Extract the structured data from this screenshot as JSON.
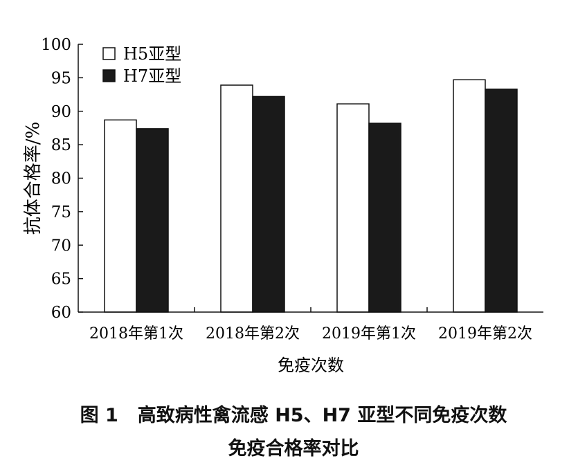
{
  "chart_data": {
    "type": "bar",
    "categories": [
      "2018年第1次",
      "2018年第2次",
      "2019年第1次",
      "2019年第2次"
    ],
    "series": [
      {
        "name": "H5亚型",
        "values": [
          88.7,
          93.9,
          91.1,
          94.7
        ],
        "color": "#ffffff"
      },
      {
        "name": "H7亚型",
        "values": [
          87.4,
          92.2,
          88.2,
          93.3
        ],
        "color": "#1a1a1a"
      }
    ],
    "xlabel": "免疫次数",
    "ylabel": "抗体合格率/%",
    "ylim": [
      60,
      100
    ],
    "yticks": [
      60,
      65,
      70,
      75,
      80,
      85,
      90,
      95,
      100
    ],
    "legend_position": "top-left",
    "grid": false
  },
  "caption": {
    "number": "图 1",
    "line1": "高致病性禽流感 H5、H7 亚型不同免疫次数",
    "line2": "免疫合格率对比"
  }
}
